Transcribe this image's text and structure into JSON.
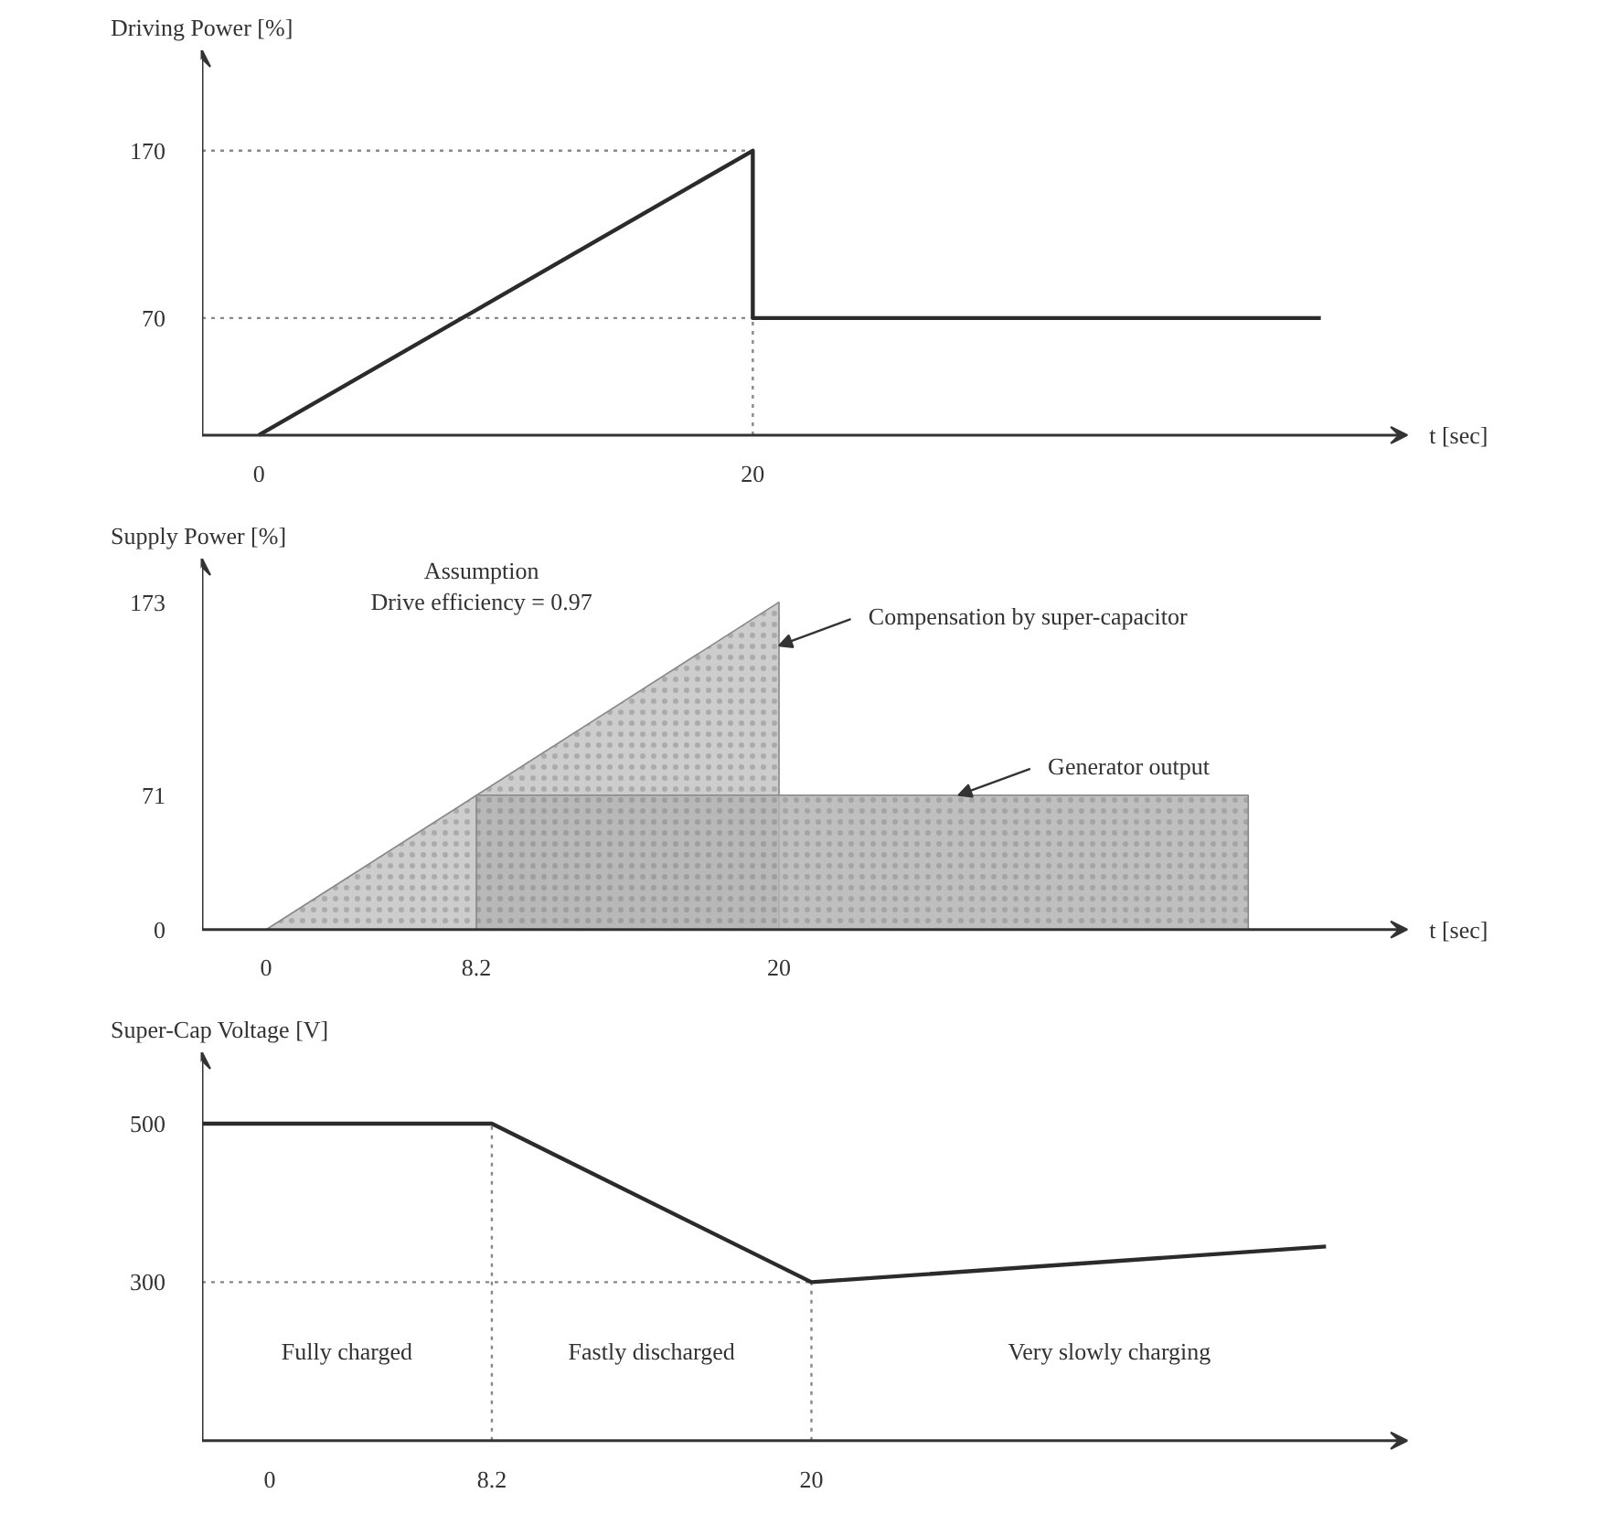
{
  "chart_data": [
    {
      "type": "line",
      "ylabel": "Driving Power [%]",
      "xlabel": "t [sec]",
      "xlim": [
        -2.3,
        46.5
      ],
      "ylim": [
        0,
        230
      ],
      "xticks": [
        0,
        20
      ],
      "yticks": [
        70,
        170
      ],
      "grid": false,
      "series": [
        {
          "color": "#2b2b2b",
          "x": [
            0,
            20,
            20,
            43
          ],
          "values": [
            0,
            170,
            70,
            70
          ]
        }
      ],
      "ref_lines": [
        {
          "axis": "y",
          "value": 170,
          "line_style": "dotted"
        },
        {
          "axis": "y",
          "value": 70,
          "line_style": "dotted"
        },
        {
          "axis": "x",
          "value": 20,
          "line_style": "dotted"
        }
      ]
    },
    {
      "type": "area",
      "ylabel": "Supply Power [%]",
      "xlabel": "t [sec]",
      "xlim": [
        -2.5,
        44.5
      ],
      "ylim": [
        0,
        196
      ],
      "xticks": [
        0,
        8.2,
        20
      ],
      "yticks": [
        0,
        71,
        173
      ],
      "grid": false,
      "series": [
        {
          "color": "#c4c4c4",
          "x": [
            0,
            20
          ],
          "values": [
            0,
            173
          ]
        },
        {
          "color": "#b4b4b4",
          "x": [
            8.2,
            38.3
          ],
          "values": [
            71,
            71
          ]
        }
      ],
      "annotations": [
        "Assumption",
        "Drive efficiency = 0.97",
        {
          "text": "Compensation by super-capacitor",
          "x": 20,
          "y": 150
        },
        {
          "text": "Generator output",
          "x": 27,
          "y": 71
        }
      ]
    },
    {
      "type": "line",
      "ylabel": "Super-Cap Voltage [V]",
      "xlim": [
        -2.5,
        42
      ],
      "ylim": [
        100,
        590
      ],
      "xticks": [
        0,
        8.2,
        20
      ],
      "yticks": [
        300,
        500
      ],
      "grid": false,
      "series": [
        {
          "color": "#2b2b2b",
          "x": [
            -2.5,
            8.2,
            20,
            39
          ],
          "values": [
            500,
            500,
            300,
            345
          ]
        }
      ],
      "ref_lines": [
        {
          "axis": "y",
          "value": 300,
          "line_style": "dotted"
        },
        {
          "axis": "x",
          "value": 8.2,
          "line_style": "dotted"
        },
        {
          "axis": "x",
          "value": 20,
          "line_style": "dotted"
        }
      ],
      "annotations": [
        "Fully charged",
        "Fastly discharged",
        "Very slowly charging"
      ]
    }
  ]
}
